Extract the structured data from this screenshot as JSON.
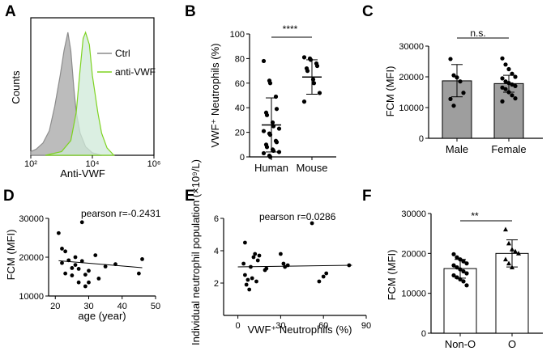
{
  "panels": [
    {
      "letter": "A"
    },
    {
      "letter": "B"
    },
    {
      "letter": "C"
    },
    {
      "letter": "D"
    },
    {
      "letter": "E"
    },
    {
      "letter": "F"
    }
  ],
  "chart_data": [
    {
      "id": "A",
      "type": "area",
      "xlabel": "Anti-VWF",
      "ylabel": "Counts",
      "x_scale": "log",
      "xlim": [
        100,
        1000000
      ],
      "x_ticks": [
        {
          "value": 100,
          "label": "10²"
        },
        {
          "value": 10000,
          "label": "10⁴"
        },
        {
          "value": 1000000,
          "label": "10⁶"
        }
      ],
      "legend": "top-right",
      "series": [
        {
          "name": "Ctrl",
          "color": "#8c8c8c",
          "fill": "#b5b5b5",
          "x": [
            100,
            150,
            250,
            400,
            600,
            900,
            1200,
            1600,
            2000,
            2500,
            3000,
            4000,
            6000,
            10000,
            20000
          ],
          "y": [
            0.03,
            0.05,
            0.1,
            0.2,
            0.4,
            0.65,
            0.85,
            1.0,
            0.85,
            0.55,
            0.35,
            0.18,
            0.07,
            0.02,
            0
          ]
        },
        {
          "name": "anti-VWF",
          "color": "#7ed321",
          "fill": "#cfead8",
          "x": [
            300,
            1000,
            2000,
            3000,
            4000,
            5000,
            6000,
            8000,
            10000,
            15000,
            20000,
            30000,
            50000
          ],
          "y": [
            0,
            0.03,
            0.12,
            0.35,
            0.7,
            0.95,
            1.0,
            0.9,
            0.65,
            0.35,
            0.18,
            0.06,
            0
          ]
        }
      ]
    },
    {
      "id": "B",
      "type": "scatter",
      "categories": [
        "Human",
        "Mouse"
      ],
      "ylabel": "VWF⁺ Neutrophils (%)",
      "ylim": [
        0,
        100
      ],
      "y_ticks": [
        0,
        20,
        40,
        60,
        80,
        100
      ],
      "significance": "****",
      "series": [
        {
          "category": "Human",
          "mean": 26,
          "sd_low": 4,
          "sd_high": 48,
          "values": [
            78,
            62,
            60,
            49,
            39,
            36,
            34,
            28,
            25,
            23,
            21,
            19,
            18,
            13,
            12,
            10,
            8,
            6,
            5,
            4,
            3,
            1,
            0
          ]
        },
        {
          "category": "Mouse",
          "mean": 65,
          "sd_low": 51,
          "sd_high": 79,
          "values": [
            81,
            80,
            79,
            76,
            74,
            72,
            70,
            63,
            60,
            52,
            45
          ]
        }
      ]
    },
    {
      "id": "C",
      "type": "bar",
      "categories": [
        "Male",
        "Female"
      ],
      "ylabel": "FCM (MFI)",
      "ylim": [
        0,
        30000
      ],
      "y_ticks": [
        0,
        10000,
        20000,
        30000
      ],
      "significance": "n.s.",
      "values": [
        18700,
        17800
      ],
      "err_low": [
        13500,
        15000
      ],
      "err_high": [
        24000,
        20500
      ],
      "points": [
        [
          25800,
          20500,
          19800,
          18500,
          14800,
          12800,
          10600
        ],
        [
          26000,
          24000,
          22500,
          21000,
          20000,
          19500,
          18500,
          18000,
          17500,
          17000,
          16500,
          16000,
          15000,
          14000,
          13000,
          12000
        ]
      ]
    },
    {
      "id": "D",
      "type": "scatter",
      "xlabel": "age (year)",
      "ylabel": "FCM (MFI)",
      "xlim": [
        18,
        50
      ],
      "ylim": [
        10000,
        30000
      ],
      "x_ticks": [
        20,
        30,
        40,
        50
      ],
      "y_ticks": [
        10000,
        20000,
        30000
      ],
      "annotation": "pearson r=-0.2431",
      "trend": [
        [
          21,
          19100
        ],
        [
          46,
          17300
        ]
      ],
      "points": [
        [
          21,
          26200
        ],
        [
          22,
          22200
        ],
        [
          22,
          18500
        ],
        [
          23,
          21500
        ],
        [
          23,
          15800
        ],
        [
          24,
          19200
        ],
        [
          25,
          17200
        ],
        [
          25,
          15300
        ],
        [
          26,
          20000
        ],
        [
          26,
          18000
        ],
        [
          27,
          17000
        ],
        [
          27,
          13500
        ],
        [
          28,
          29000
        ],
        [
          28,
          19000
        ],
        [
          29,
          15500
        ],
        [
          29,
          12500
        ],
        [
          30,
          16500
        ],
        [
          30,
          13500
        ],
        [
          32,
          20500
        ],
        [
          33,
          14500
        ],
        [
          35,
          17600
        ],
        [
          38,
          18200
        ],
        [
          45,
          15800
        ],
        [
          46,
          19500
        ]
      ]
    },
    {
      "id": "E",
      "type": "scatter",
      "xlabel": "VWF⁺ Neutrophils (%)",
      "ylabel": "Individual neutrophil population (×10⁹/L)",
      "xlim": [
        -10,
        90
      ],
      "ylim": [
        0,
        6
      ],
      "x_ticks": [
        0,
        30,
        60,
        90
      ],
      "y_ticks": [
        2,
        4,
        6
      ],
      "annotation": "pearson r=0.0286",
      "trend": [
        [
          0,
          3.0
        ],
        [
          80,
          3.1
        ]
      ],
      "points": [
        [
          5,
          4.5
        ],
        [
          4,
          3.2
        ],
        [
          5,
          2.5
        ],
        [
          6,
          1.9
        ],
        [
          7,
          2.2
        ],
        [
          8,
          1.6
        ],
        [
          9,
          3.0
        ],
        [
          10,
          2.3
        ],
        [
          11,
          3.6
        ],
        [
          12,
          3.8
        ],
        [
          13,
          2.1
        ],
        [
          14,
          3.4
        ],
        [
          15,
          3.7
        ],
        [
          19,
          2.8
        ],
        [
          20,
          2.9
        ],
        [
          30,
          3.8
        ],
        [
          32,
          3.2
        ],
        [
          33,
          3.0
        ],
        [
          35,
          3.1
        ],
        [
          52,
          5.7
        ],
        [
          57,
          2.1
        ],
        [
          60,
          2.4
        ],
        [
          62,
          2.6
        ],
        [
          78,
          3.1
        ]
      ]
    },
    {
      "id": "F",
      "type": "bar",
      "categories": [
        "Non-O",
        "O"
      ],
      "ylabel": "FCM (MFI)",
      "ylim": [
        0,
        30000
      ],
      "y_ticks": [
        0,
        10000,
        20000,
        30000
      ],
      "significance": "**",
      "values": [
        16200,
        20000
      ],
      "err_low": [
        13800,
        16600
      ],
      "err_high": [
        18500,
        23400
      ],
      "points": [
        [
          19800,
          19000,
          18500,
          18000,
          17500,
          17000,
          16500,
          16000,
          15500,
          15000,
          14500,
          14000,
          13500,
          13000,
          12000
        ],
        [
          26000,
          22500,
          21000,
          20500,
          20000,
          18500,
          17500,
          16500
        ]
      ]
    }
  ]
}
